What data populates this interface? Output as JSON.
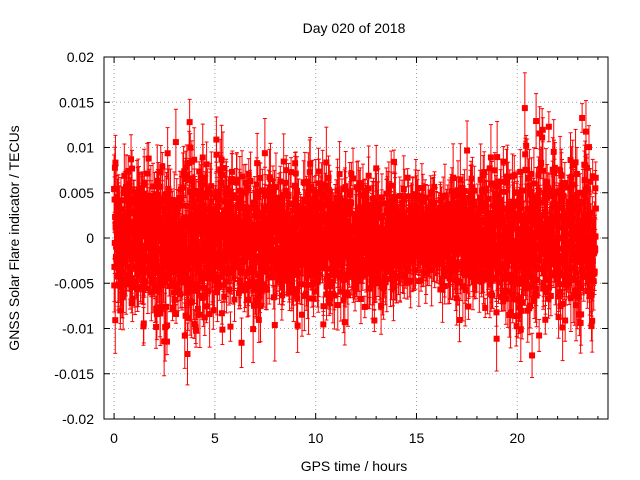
{
  "chart_data": {
    "type": "scatter",
    "title": "Day 020 of 2018",
    "xlabel": "GPS time / hours",
    "ylabel": "GNSS Solar Flare indicator / TECUs",
    "xlim": [
      -0.5,
      24.5
    ],
    "ylim": [
      -0.02,
      0.02
    ],
    "x_ticks": [
      0,
      5,
      10,
      15,
      20
    ],
    "y_ticks": [
      0.02,
      0.015,
      0.01,
      0.005,
      0,
      -0.005,
      -0.01,
      -0.015,
      -0.02
    ],
    "x_tick_labels": [
      "0",
      "5",
      "10",
      "15",
      "20"
    ],
    "y_tick_labels": [
      "0.02",
      "0.015",
      "0.01",
      "0.005",
      "0",
      "-0.005",
      "-0.01",
      "-0.015",
      "-0.02"
    ],
    "grid": true,
    "series": [
      {
        "name": "solar flare indicator",
        "color": "#ff0000",
        "marker": "square",
        "error_bars": true,
        "x_range": [
          0,
          23.9
        ],
        "sample_interval_hours": 0.00833,
        "noise_envelope_by_hour": [
          {
            "hour": 0,
            "sigma": 0.004,
            "max_abs": 0.009
          },
          {
            "hour": 4,
            "sigma": 0.0045,
            "max_abs": 0.0145
          },
          {
            "hour": 8,
            "sigma": 0.0035,
            "max_abs": 0.011
          },
          {
            "hour": 12,
            "sigma": 0.0033,
            "max_abs": 0.0145
          },
          {
            "hour": 16,
            "sigma": 0.0022,
            "max_abs": 0.009
          },
          {
            "hour": 20,
            "sigma": 0.0045,
            "max_abs": 0.0145
          },
          {
            "hour": 23.9,
            "sigma": 0.004,
            "max_abs": 0.013
          }
        ],
        "error_bar_halfwidth": [
          0.001,
          0.004
        ]
      }
    ]
  },
  "colors": {
    "series": "#ff0000",
    "grid": "#a0a0a0",
    "axis": "#000000",
    "background": "#ffffff"
  }
}
